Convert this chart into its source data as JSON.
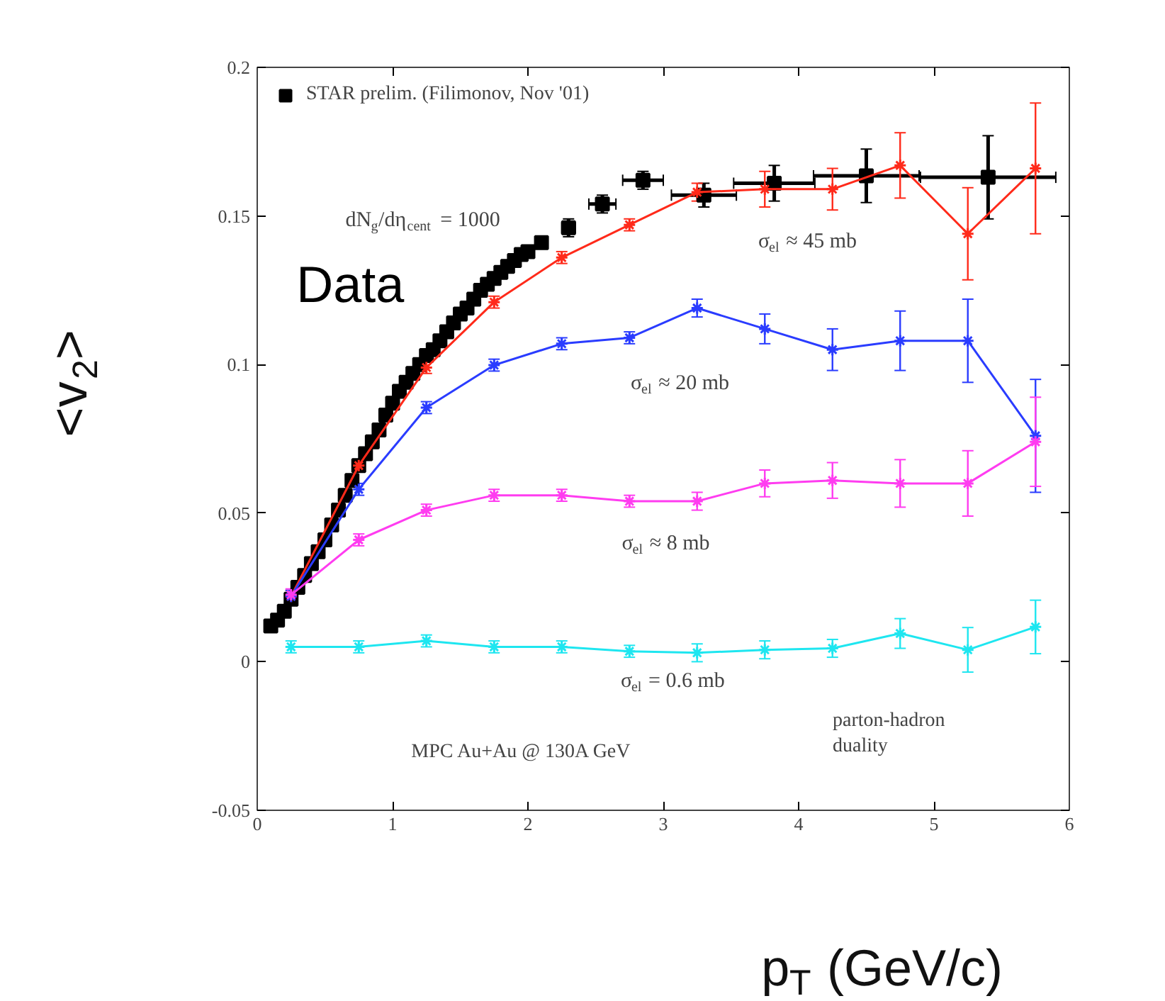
{
  "chart_data": {
    "type": "line",
    "xlabel": "p$_{T}$ (GeV/c)",
    "ylabel": "<v$_{2}$>",
    "xlim": [
      0,
      6
    ],
    "xticks": [
      0,
      1,
      2,
      3,
      4,
      5,
      6
    ],
    "ylim": [
      -0.05,
      0.2
    ],
    "yticks": [
      -0.05,
      0,
      0.05,
      0.1,
      0.15,
      0.2
    ],
    "grid": false,
    "legend": "top left",
    "marker": "cross",
    "line_style": "solid",
    "x": [
      0.25,
      0.75,
      1.25,
      1.75,
      2.25,
      2.75,
      3.25,
      3.75,
      4.25,
      4.75,
      5.25,
      5.75
    ],
    "series": [
      {
        "name": "STAR prelim. (Filimonov, Nov '01)",
        "type": "scatter",
        "marker": "square",
        "color": "#000000",
        "x": [
          0.1,
          0.15,
          0.2,
          0.25,
          0.3,
          0.35,
          0.4,
          0.45,
          0.5,
          0.55,
          0.6,
          0.65,
          0.7,
          0.75,
          0.8,
          0.85,
          0.9,
          0.95,
          1.0,
          1.05,
          1.1,
          1.15,
          1.2,
          1.25,
          1.3,
          1.35,
          1.4,
          1.45,
          1.5,
          1.55,
          1.6,
          1.65,
          1.7,
          1.75,
          1.8,
          1.85,
          1.9,
          1.95,
          2.0,
          2.1,
          2.3,
          2.55,
          2.85,
          3.3,
          3.82,
          4.5,
          5.4
        ],
        "values": [
          0.012,
          0.014,
          0.017,
          0.021,
          0.025,
          0.029,
          0.033,
          0.037,
          0.041,
          0.046,
          0.051,
          0.056,
          0.061,
          0.066,
          0.07,
          0.074,
          0.078,
          0.083,
          0.087,
          0.091,
          0.094,
          0.097,
          0.1,
          0.103,
          0.105,
          0.108,
          0.111,
          0.114,
          0.117,
          0.119,
          0.122,
          0.125,
          0.127,
          0.129,
          0.131,
          0.133,
          0.135,
          0.137,
          0.138,
          0.141,
          0.146,
          0.154,
          0.162,
          0.157,
          0.161,
          0.1635,
          0.163
        ],
        "errors": [
          null,
          null,
          null,
          null,
          null,
          null,
          null,
          null,
          null,
          null,
          null,
          null,
          null,
          null,
          null,
          null,
          null,
          null,
          null,
          null,
          null,
          null,
          null,
          null,
          null,
          null,
          null,
          null,
          null,
          null,
          null,
          null,
          null,
          null,
          null,
          null,
          null,
          null,
          null,
          null,
          0.003,
          0.003,
          0.003,
          0.004,
          0.006,
          0.009,
          0.014
        ],
        "xerrors": [
          null,
          null,
          null,
          null,
          null,
          null,
          null,
          null,
          null,
          null,
          null,
          null,
          null,
          null,
          null,
          null,
          null,
          null,
          null,
          null,
          null,
          null,
          null,
          null,
          null,
          null,
          null,
          null,
          null,
          null,
          null,
          null,
          null,
          null,
          null,
          null,
          null,
          null,
          null,
          null,
          0.05,
          0.1,
          0.15,
          0.24,
          0.3,
          0.39,
          0.5
        ]
      },
      {
        "color": "#ff2a1a",
        "values": [
          0.022,
          0.066,
          0.099,
          0.121,
          0.136,
          0.147,
          0.158,
          0.159,
          0.159,
          0.167,
          0.144,
          0.166
        ],
        "errors": [
          0.002,
          0.002,
          0.002,
          0.002,
          0.002,
          0.002,
          0.003,
          0.006,
          0.007,
          0.011,
          0.0155,
          0.022
        ]
      },
      {
        "color": "#2a3cff",
        "values": [
          0.022,
          0.058,
          0.0855,
          0.0998,
          0.107,
          0.109,
          0.119,
          0.112,
          0.105,
          0.108,
          0.108,
          0.076
        ],
        "errors": [
          0.002,
          0.002,
          0.002,
          0.002,
          0.002,
          0.002,
          0.003,
          0.005,
          0.007,
          0.01,
          0.014,
          0.019
        ]
      },
      {
        "color": "#ff3cf0",
        "values": [
          0.0225,
          0.041,
          0.051,
          0.056,
          0.056,
          0.054,
          0.054,
          0.06,
          0.061,
          0.06,
          0.06,
          0.074
        ],
        "errors": [
          0.002,
          0.002,
          0.002,
          0.002,
          0.002,
          0.002,
          0.003,
          0.0045,
          0.006,
          0.008,
          0.011,
          0.015
        ]
      },
      {
        "color": "#1ee6f0",
        "values": [
          0.005,
          0.005,
          0.007,
          0.005,
          0.005,
          0.0035,
          0.003,
          0.004,
          0.0045,
          0.0095,
          0.004,
          0.0117
        ],
        "errors": [
          0.002,
          0.002,
          0.002,
          0.002,
          0.002,
          0.002,
          0.003,
          0.003,
          0.003,
          0.005,
          0.0075,
          0.009
        ]
      }
    ],
    "annotations": [
      "Data",
      "dN$_{g}$/dη$_{cent}$ = 1000",
      "σ$_{el}$ ≈ 45 mb",
      "σ$_{el}$ ≈ 20 mb",
      "σ$_{el}$ ≈ 8 mb",
      "σ$_{el}$ = 0.6 mb",
      "MPC Au+Au @ 130A GeV",
      "parton-hadron\nduality"
    ]
  }
}
